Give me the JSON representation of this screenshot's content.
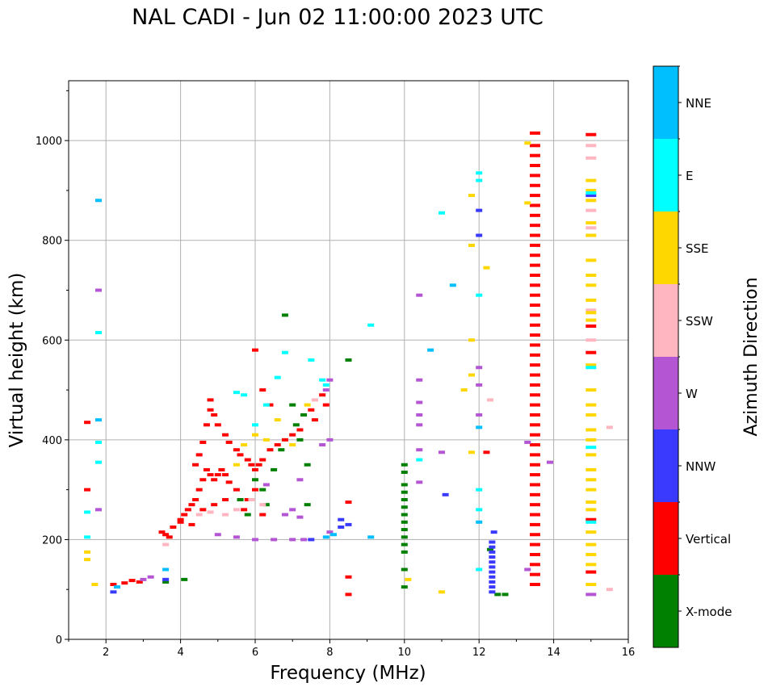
{
  "chart_data": {
    "type": "scatter",
    "title": "NAL CADI - Jun 02 11:00:00 2023 UTC",
    "xlabel": "Frequency (MHz)",
    "ylabel": "Virtual height (km)",
    "xlim": [
      1,
      16
    ],
    "ylim": [
      0,
      1120
    ],
    "xticks": [
      2,
      4,
      6,
      8,
      10,
      12,
      14,
      16
    ],
    "yticks": [
      0,
      200,
      400,
      600,
      800,
      1000
    ],
    "grid": true,
    "colorbar": {
      "label": "Azimuth Direction",
      "categories": [
        "X-mode",
        "Vertical",
        "NNW",
        "W",
        "SSW",
        "SSE",
        "E",
        "NNE"
      ],
      "colors": {
        "X-mode": "#008000",
        "Vertical": "#ff0000",
        "NNW": "#3a3aff",
        "W": "#b455d4",
        "SSW": "#ffb6c1",
        "SSE": "#ffd700",
        "E": "#00ffff",
        "NNE": "#00bfff"
      }
    },
    "series": [
      {
        "name": "Vertical",
        "points": [
          [
            1.5,
            435
          ],
          [
            1.5,
            300
          ],
          [
            2.2,
            110
          ],
          [
            2.5,
            113
          ],
          [
            2.7,
            118
          ],
          [
            2.9,
            115
          ],
          [
            3.5,
            215
          ],
          [
            3.6,
            210
          ],
          [
            3.7,
            205
          ],
          [
            3.8,
            225
          ],
          [
            4.0,
            235
          ],
          [
            4.1,
            250
          ],
          [
            4.2,
            260
          ],
          [
            4.3,
            270
          ],
          [
            4.4,
            280
          ],
          [
            4.5,
            300
          ],
          [
            4.6,
            320
          ],
          [
            4.7,
            340
          ],
          [
            4.8,
            330
          ],
          [
            4.9,
            320
          ],
          [
            5.0,
            330
          ],
          [
            5.1,
            340
          ],
          [
            5.2,
            330
          ],
          [
            5.3,
            315
          ],
          [
            4.4,
            350
          ],
          [
            4.5,
            370
          ],
          [
            4.6,
            395
          ],
          [
            4.7,
            430
          ],
          [
            4.8,
            460
          ],
          [
            4.8,
            480
          ],
          [
            4.9,
            450
          ],
          [
            5.0,
            430
          ],
          [
            5.2,
            410
          ],
          [
            5.3,
            395
          ],
          [
            5.5,
            380
          ],
          [
            5.6,
            370
          ],
          [
            5.8,
            360
          ],
          [
            5.9,
            350
          ],
          [
            6.0,
            340
          ],
          [
            6.1,
            350
          ],
          [
            6.2,
            360
          ],
          [
            6.4,
            380
          ],
          [
            6.6,
            390
          ],
          [
            6.8,
            400
          ],
          [
            7.0,
            410
          ],
          [
            7.2,
            420
          ],
          [
            6.0,
            580
          ],
          [
            6.2,
            500
          ],
          [
            6.4,
            470
          ],
          [
            7.5,
            460
          ],
          [
            7.6,
            440
          ],
          [
            7.8,
            490
          ],
          [
            7.9,
            470
          ],
          [
            5.7,
            260
          ],
          [
            5.8,
            280
          ],
          [
            6.0,
            300
          ],
          [
            6.2,
            250
          ],
          [
            4.0,
            240
          ],
          [
            4.3,
            230
          ],
          [
            4.6,
            260
          ],
          [
            4.9,
            270
          ],
          [
            5.2,
            280
          ],
          [
            5.5,
            300
          ],
          [
            8.5,
            275
          ],
          [
            8.5,
            125
          ],
          [
            8.5,
            90
          ],
          [
            12.2,
            375
          ],
          [
            13.5,
            1015
          ],
          [
            13.5,
            990
          ],
          [
            13.5,
            970
          ],
          [
            13.5,
            950
          ],
          [
            13.5,
            930
          ],
          [
            13.5,
            910
          ],
          [
            13.5,
            890
          ],
          [
            13.5,
            870
          ],
          [
            13.5,
            850
          ],
          [
            13.5,
            830
          ],
          [
            13.5,
            810
          ],
          [
            13.5,
            790
          ],
          [
            13.5,
            770
          ],
          [
            13.5,
            750
          ],
          [
            13.5,
            730
          ],
          [
            13.5,
            710
          ],
          [
            13.5,
            690
          ],
          [
            13.5,
            670
          ],
          [
            13.5,
            650
          ],
          [
            13.5,
            630
          ],
          [
            13.5,
            610
          ],
          [
            13.5,
            590
          ],
          [
            13.5,
            570
          ],
          [
            13.5,
            550
          ],
          [
            13.5,
            530
          ],
          [
            13.5,
            510
          ],
          [
            13.5,
            490
          ],
          [
            13.5,
            470
          ],
          [
            13.5,
            450
          ],
          [
            13.5,
            430
          ],
          [
            13.5,
            410
          ],
          [
            13.5,
            390
          ],
          [
            13.5,
            370
          ],
          [
            13.5,
            350
          ],
          [
            13.5,
            330
          ],
          [
            13.5,
            310
          ],
          [
            13.5,
            290
          ],
          [
            13.5,
            270
          ],
          [
            13.5,
            250
          ],
          [
            13.5,
            230
          ],
          [
            13.5,
            210
          ],
          [
            13.5,
            190
          ],
          [
            13.5,
            170
          ],
          [
            13.5,
            150
          ],
          [
            13.5,
            130
          ],
          [
            13.5,
            110
          ],
          [
            15.0,
            1012
          ],
          [
            15.0,
            628
          ],
          [
            15.0,
            575
          ],
          [
            15.0,
            240
          ],
          [
            15.0,
            135
          ]
        ]
      },
      {
        "name": "X-mode",
        "points": [
          [
            3.6,
            115
          ],
          [
            4.1,
            120
          ],
          [
            5.6,
            280
          ],
          [
            5.8,
            250
          ],
          [
            6.0,
            320
          ],
          [
            6.2,
            300
          ],
          [
            6.3,
            270
          ],
          [
            6.5,
            340
          ],
          [
            6.7,
            380
          ],
          [
            6.8,
            650
          ],
          [
            7.0,
            470
          ],
          [
            7.1,
            430
          ],
          [
            7.2,
            400
          ],
          [
            7.3,
            450
          ],
          [
            7.4,
            350
          ],
          [
            7.4,
            270
          ],
          [
            8.5,
            560
          ],
          [
            10.0,
            350
          ],
          [
            10.0,
            335
          ],
          [
            10.0,
            310
          ],
          [
            10.0,
            295
          ],
          [
            10.0,
            280
          ],
          [
            10.0,
            265
          ],
          [
            10.0,
            250
          ],
          [
            10.0,
            235
          ],
          [
            10.0,
            220
          ],
          [
            10.0,
            205
          ],
          [
            10.0,
            190
          ],
          [
            10.0,
            175
          ],
          [
            10.0,
            140
          ],
          [
            10.0,
            105
          ],
          [
            12.5,
            90
          ],
          [
            12.7,
            90
          ],
          [
            12.3,
            180
          ]
        ]
      },
      {
        "name": "NNW",
        "points": [
          [
            2.2,
            95
          ],
          [
            3.6,
            120
          ],
          [
            7.5,
            200
          ],
          [
            8.3,
            225
          ],
          [
            8.5,
            230
          ],
          [
            8.3,
            240
          ],
          [
            11.1,
            290
          ],
          [
            12.0,
            860
          ],
          [
            12.0,
            810
          ],
          [
            12.4,
            215
          ],
          [
            12.35,
            195
          ],
          [
            12.35,
            185
          ],
          [
            12.35,
            175
          ],
          [
            12.35,
            165
          ],
          [
            12.35,
            155
          ],
          [
            12.35,
            145
          ],
          [
            12.35,
            135
          ],
          [
            12.35,
            125
          ],
          [
            12.35,
            115
          ],
          [
            12.35,
            105
          ],
          [
            12.35,
            95
          ],
          [
            15.0,
            890
          ]
        ]
      },
      {
        "name": "W",
        "points": [
          [
            1.8,
            260
          ],
          [
            1.8,
            700
          ],
          [
            3.0,
            120
          ],
          [
            3.2,
            125
          ],
          [
            5.0,
            210
          ],
          [
            5.5,
            205
          ],
          [
            6.0,
            200
          ],
          [
            6.5,
            200
          ],
          [
            7.0,
            200
          ],
          [
            7.3,
            200
          ],
          [
            7.0,
            260
          ],
          [
            6.8,
            250
          ],
          [
            7.2,
            245
          ],
          [
            7.8,
            390
          ],
          [
            8.0,
            400
          ],
          [
            8.0,
            520
          ],
          [
            7.9,
            500
          ],
          [
            6.3,
            310
          ],
          [
            7.2,
            320
          ],
          [
            8.0,
            215
          ],
          [
            10.4,
            690
          ],
          [
            10.4,
            520
          ],
          [
            10.4,
            475
          ],
          [
            10.4,
            450
          ],
          [
            10.4,
            430
          ],
          [
            10.4,
            380
          ],
          [
            10.4,
            315
          ],
          [
            11.0,
            375
          ],
          [
            12.0,
            450
          ],
          [
            12.0,
            545
          ],
          [
            12.0,
            510
          ],
          [
            13.3,
            395
          ],
          [
            13.9,
            355
          ],
          [
            13.3,
            140
          ],
          [
            15.0,
            90
          ]
        ]
      },
      {
        "name": "SSW",
        "points": [
          [
            3.6,
            190
          ],
          [
            4.5,
            250
          ],
          [
            4.8,
            255
          ],
          [
            5.2,
            250
          ],
          [
            5.5,
            260
          ],
          [
            5.9,
            280
          ],
          [
            6.2,
            270
          ],
          [
            7.6,
            480
          ],
          [
            12.3,
            480
          ],
          [
            15.0,
            990
          ],
          [
            15.0,
            965
          ],
          [
            15.0,
            860
          ],
          [
            15.0,
            825
          ],
          [
            15.0,
            660
          ],
          [
            15.0,
            600
          ],
          [
            15.5,
            425
          ],
          [
            15.5,
            100
          ]
        ]
      },
      {
        "name": "SSE",
        "points": [
          [
            1.5,
            175
          ],
          [
            1.5,
            160
          ],
          [
            1.7,
            110
          ],
          [
            5.5,
            350
          ],
          [
            5.7,
            390
          ],
          [
            6.0,
            410
          ],
          [
            6.3,
            400
          ],
          [
            6.6,
            440
          ],
          [
            7.0,
            390
          ],
          [
            7.4,
            470
          ],
          [
            10.1,
            120
          ],
          [
            11.0,
            95
          ],
          [
            11.8,
            890
          ],
          [
            11.8,
            790
          ],
          [
            11.8,
            600
          ],
          [
            11.8,
            530
          ],
          [
            11.6,
            500
          ],
          [
            11.8,
            375
          ],
          [
            12.2,
            745
          ],
          [
            13.3,
            995
          ],
          [
            13.3,
            875
          ],
          [
            15.0,
            920
          ],
          [
            15.0,
            900
          ],
          [
            15.0,
            880
          ],
          [
            15.0,
            835
          ],
          [
            15.0,
            810
          ],
          [
            15.0,
            760
          ],
          [
            15.0,
            730
          ],
          [
            15.0,
            710
          ],
          [
            15.0,
            680
          ],
          [
            15.0,
            655
          ],
          [
            15.0,
            640
          ],
          [
            15.0,
            550
          ],
          [
            15.0,
            500
          ],
          [
            15.0,
            470
          ],
          [
            15.0,
            450
          ],
          [
            15.0,
            420
          ],
          [
            15.0,
            400
          ],
          [
            15.0,
            370
          ],
          [
            15.0,
            340
          ],
          [
            15.0,
            320
          ],
          [
            15.0,
            300
          ],
          [
            15.0,
            275
          ],
          [
            15.0,
            260
          ],
          [
            15.0,
            215
          ],
          [
            15.0,
            190
          ],
          [
            15.0,
            170
          ],
          [
            15.0,
            150
          ],
          [
            15.0,
            110
          ]
        ]
      },
      {
        "name": "E",
        "points": [
          [
            1.5,
            255
          ],
          [
            1.5,
            205
          ],
          [
            1.8,
            615
          ],
          [
            1.8,
            395
          ],
          [
            1.8,
            355
          ],
          [
            5.5,
            495
          ],
          [
            5.7,
            490
          ],
          [
            6.0,
            430
          ],
          [
            6.3,
            470
          ],
          [
            6.6,
            525
          ],
          [
            6.8,
            575
          ],
          [
            7.5,
            560
          ],
          [
            7.8,
            520
          ],
          [
            7.9,
            510
          ],
          [
            9.1,
            630
          ],
          [
            10.4,
            360
          ],
          [
            11.0,
            855
          ],
          [
            12.0,
            935
          ],
          [
            12.0,
            920
          ],
          [
            12.0,
            690
          ],
          [
            12.0,
            300
          ],
          [
            12.0,
            260
          ],
          [
            12.0,
            140
          ],
          [
            15.0,
            895
          ],
          [
            15.0,
            545
          ],
          [
            15.0,
            385
          ],
          [
            15.0,
            235
          ]
        ]
      },
      {
        "name": "NNE",
        "points": [
          [
            1.8,
            880
          ],
          [
            1.8,
            440
          ],
          [
            2.3,
            105
          ],
          [
            3.6,
            140
          ],
          [
            7.9,
            205
          ],
          [
            8.1,
            210
          ],
          [
            9.1,
            205
          ],
          [
            10.7,
            580
          ],
          [
            11.3,
            710
          ],
          [
            12.0,
            425
          ],
          [
            12.0,
            235
          ]
        ]
      }
    ]
  }
}
